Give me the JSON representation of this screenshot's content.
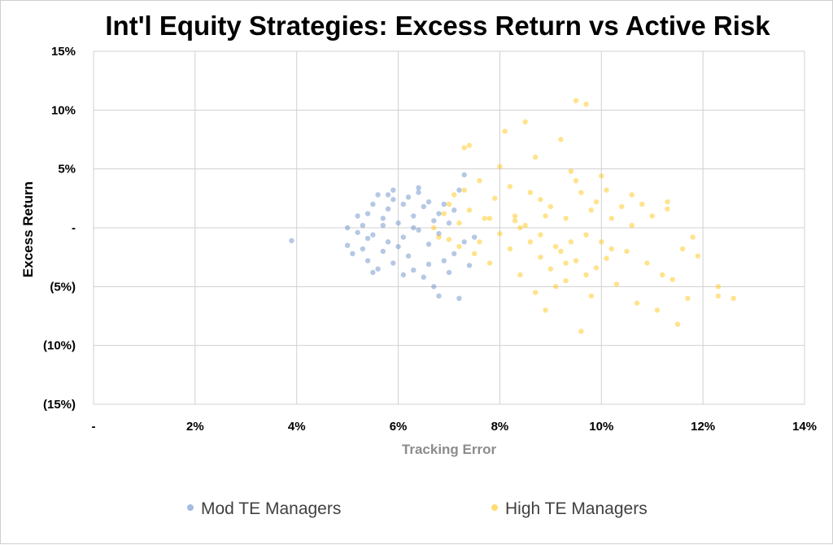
{
  "chart_data": {
    "type": "scatter",
    "title": "Int'l Equity Strategies: Excess Return vs Active Risk",
    "xlabel": "Tracking Error",
    "ylabel": "Excess Return",
    "xlim": [
      0,
      0.14
    ],
    "ylim": [
      -0.15,
      0.15
    ],
    "x_ticks": [
      0,
      0.02,
      0.04,
      0.06,
      0.08,
      0.1,
      0.12,
      0.14
    ],
    "x_tick_labels": [
      "-",
      "2%",
      "4%",
      "6%",
      "8%",
      "10%",
      "12%",
      "14%"
    ],
    "y_ticks": [
      0.15,
      0.1,
      0.05,
      0,
      -0.05,
      -0.1,
      -0.15
    ],
    "y_tick_labels": [
      "15%",
      "10%",
      "5%",
      "-",
      "(5%)",
      "(10%)",
      "(15%)"
    ],
    "grid": true,
    "legend_position": "bottom",
    "series": [
      {
        "name": "Mod TE Managers",
        "color": "#5b84c4",
        "points": [
          [
            0.039,
            -0.011
          ],
          [
            0.05,
            -0.015
          ],
          [
            0.051,
            -0.022
          ],
          [
            0.052,
            -0.004
          ],
          [
            0.053,
            0.002
          ],
          [
            0.053,
            -0.018
          ],
          [
            0.054,
            0.012
          ],
          [
            0.054,
            -0.028
          ],
          [
            0.055,
            0.02
          ],
          [
            0.055,
            -0.006
          ],
          [
            0.056,
            0.028
          ],
          [
            0.056,
            -0.035
          ],
          [
            0.057,
            0.008
          ],
          [
            0.057,
            -0.02
          ],
          [
            0.058,
            0.016
          ],
          [
            0.058,
            -0.012
          ],
          [
            0.059,
            0.024
          ],
          [
            0.059,
            -0.03
          ],
          [
            0.06,
            0.004
          ],
          [
            0.06,
            -0.016
          ],
          [
            0.061,
            0.02
          ],
          [
            0.061,
            -0.008
          ],
          [
            0.062,
            0.026
          ],
          [
            0.062,
            -0.024
          ],
          [
            0.063,
            0.01
          ],
          [
            0.063,
            -0.036
          ],
          [
            0.064,
            0.03
          ],
          [
            0.064,
            -0.002
          ],
          [
            0.065,
            0.018
          ],
          [
            0.065,
            -0.042
          ],
          [
            0.066,
            -0.014
          ],
          [
            0.066,
            0.022
          ],
          [
            0.067,
            -0.05
          ],
          [
            0.067,
            0.006
          ],
          [
            0.068,
            -0.058
          ],
          [
            0.068,
            0.012
          ],
          [
            0.069,
            -0.028
          ],
          [
            0.069,
            0.02
          ],
          [
            0.07,
            -0.038
          ],
          [
            0.07,
            0.004
          ],
          [
            0.071,
            -0.022
          ],
          [
            0.072,
            0.032
          ],
          [
            0.072,
            -0.06
          ],
          [
            0.073,
            0.045
          ],
          [
            0.073,
            -0.012
          ],
          [
            0.074,
            -0.032
          ],
          [
            0.075,
            -0.008
          ],
          [
            0.058,
            0.028
          ],
          [
            0.055,
            -0.038
          ],
          [
            0.061,
            -0.04
          ],
          [
            0.064,
            0.034
          ],
          [
            0.05,
            0.0
          ],
          [
            0.052,
            0.01
          ],
          [
            0.059,
            0.032
          ],
          [
            0.066,
            -0.031
          ],
          [
            0.068,
            -0.005
          ],
          [
            0.071,
            0.015
          ],
          [
            0.063,
            0.0
          ],
          [
            0.057,
            0.002
          ],
          [
            0.054,
            -0.009
          ]
        ]
      },
      {
        "name": "High TE Managers",
        "color": "#ffc000",
        "points": [
          [
            0.067,
            0.0
          ],
          [
            0.068,
            -0.008
          ],
          [
            0.069,
            0.012
          ],
          [
            0.07,
            0.02
          ],
          [
            0.07,
            -0.01
          ],
          [
            0.071,
            0.028
          ],
          [
            0.072,
            0.004
          ],
          [
            0.072,
            -0.016
          ],
          [
            0.073,
            0.068
          ],
          [
            0.073,
            0.032
          ],
          [
            0.074,
            0.07
          ],
          [
            0.074,
            0.015
          ],
          [
            0.075,
            -0.022
          ],
          [
            0.076,
            0.04
          ],
          [
            0.077,
            0.008
          ],
          [
            0.078,
            -0.03
          ],
          [
            0.079,
            0.025
          ],
          [
            0.08,
            0.052
          ],
          [
            0.08,
            -0.005
          ],
          [
            0.081,
            0.082
          ],
          [
            0.082,
            0.035
          ],
          [
            0.082,
            -0.018
          ],
          [
            0.083,
            0.01
          ],
          [
            0.084,
            -0.04
          ],
          [
            0.085,
            0.09
          ],
          [
            0.085,
            0.002
          ],
          [
            0.086,
            -0.012
          ],
          [
            0.087,
            0.06
          ],
          [
            0.087,
            -0.055
          ],
          [
            0.088,
            0.024
          ],
          [
            0.088,
            -0.025
          ],
          [
            0.089,
            -0.07
          ],
          [
            0.09,
            0.018
          ],
          [
            0.09,
            -0.035
          ],
          [
            0.091,
            -0.05
          ],
          [
            0.092,
            0.075
          ],
          [
            0.092,
            -0.02
          ],
          [
            0.093,
            0.008
          ],
          [
            0.093,
            -0.045
          ],
          [
            0.094,
            0.048
          ],
          [
            0.094,
            -0.012
          ],
          [
            0.095,
            0.108
          ],
          [
            0.095,
            -0.028
          ],
          [
            0.096,
            -0.088
          ],
          [
            0.096,
            0.03
          ],
          [
            0.097,
            0.105
          ],
          [
            0.097,
            -0.04
          ],
          [
            0.098,
            0.015
          ],
          [
            0.098,
            -0.058
          ],
          [
            0.099,
            0.022
          ],
          [
            0.099,
            -0.034
          ],
          [
            0.1,
            -0.012
          ],
          [
            0.1,
            0.044
          ],
          [
            0.101,
            -0.026
          ],
          [
            0.102,
            0.008
          ],
          [
            0.103,
            -0.048
          ],
          [
            0.104,
            0.018
          ],
          [
            0.105,
            -0.02
          ],
          [
            0.106,
            0.002
          ],
          [
            0.107,
            -0.064
          ],
          [
            0.108,
            0.02
          ],
          [
            0.109,
            -0.03
          ],
          [
            0.11,
            0.01
          ],
          [
            0.111,
            -0.07
          ],
          [
            0.112,
            -0.04
          ],
          [
            0.113,
            0.022
          ],
          [
            0.114,
            -0.044
          ],
          [
            0.115,
            -0.082
          ],
          [
            0.116,
            -0.018
          ],
          [
            0.117,
            -0.06
          ],
          [
            0.118,
            -0.008
          ],
          [
            0.123,
            -0.05
          ],
          [
            0.123,
            -0.058
          ],
          [
            0.126,
            -0.06
          ],
          [
            0.119,
            -0.024
          ],
          [
            0.113,
            0.016
          ],
          [
            0.106,
            0.028
          ],
          [
            0.101,
            0.032
          ],
          [
            0.095,
            0.04
          ],
          [
            0.089,
            0.01
          ],
          [
            0.084,
            0.0
          ],
          [
            0.078,
            0.008
          ],
          [
            0.076,
            -0.012
          ],
          [
            0.083,
            0.006
          ],
          [
            0.088,
            -0.006
          ],
          [
            0.091,
            -0.016
          ],
          [
            0.097,
            -0.006
          ],
          [
            0.102,
            -0.018
          ],
          [
            0.093,
            -0.03
          ],
          [
            0.086,
            0.03
          ]
        ]
      }
    ]
  }
}
